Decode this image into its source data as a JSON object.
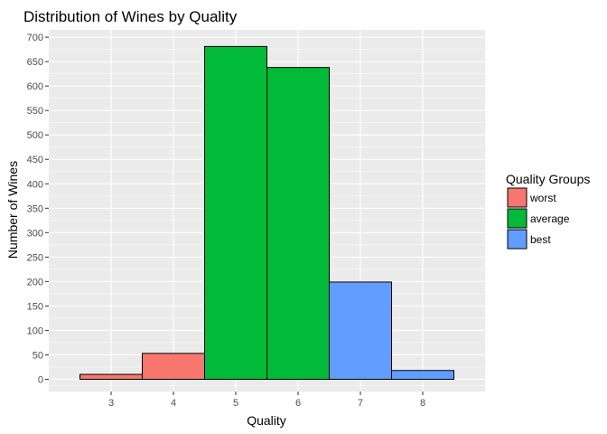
{
  "chart_data": {
    "type": "bar",
    "title": "Distribution of Wines by Quality",
    "xlabel": "Quality",
    "ylabel": "Number of Wines",
    "categories": [
      "3",
      "4",
      "5",
      "6",
      "7",
      "8"
    ],
    "values": [
      10,
      53,
      681,
      638,
      199,
      18
    ],
    "groups": [
      "worst",
      "worst",
      "average",
      "average",
      "best",
      "best"
    ],
    "ylim": [
      -25,
      715
    ],
    "yticks": [
      0,
      50,
      100,
      150,
      200,
      250,
      300,
      350,
      400,
      450,
      500,
      550,
      600,
      650,
      700
    ],
    "grid": true,
    "legend": {
      "title": "Quality Groups",
      "placement": "right",
      "items": [
        {
          "label": "worst",
          "color": "#F8766D"
        },
        {
          "label": "average",
          "color": "#00BA38"
        },
        {
          "label": "best",
          "color": "#619CFF"
        }
      ]
    },
    "colors": {
      "panel_background": "#EBEBEB",
      "grid": "#FFFFFF",
      "bar_outline": "#000000"
    }
  }
}
